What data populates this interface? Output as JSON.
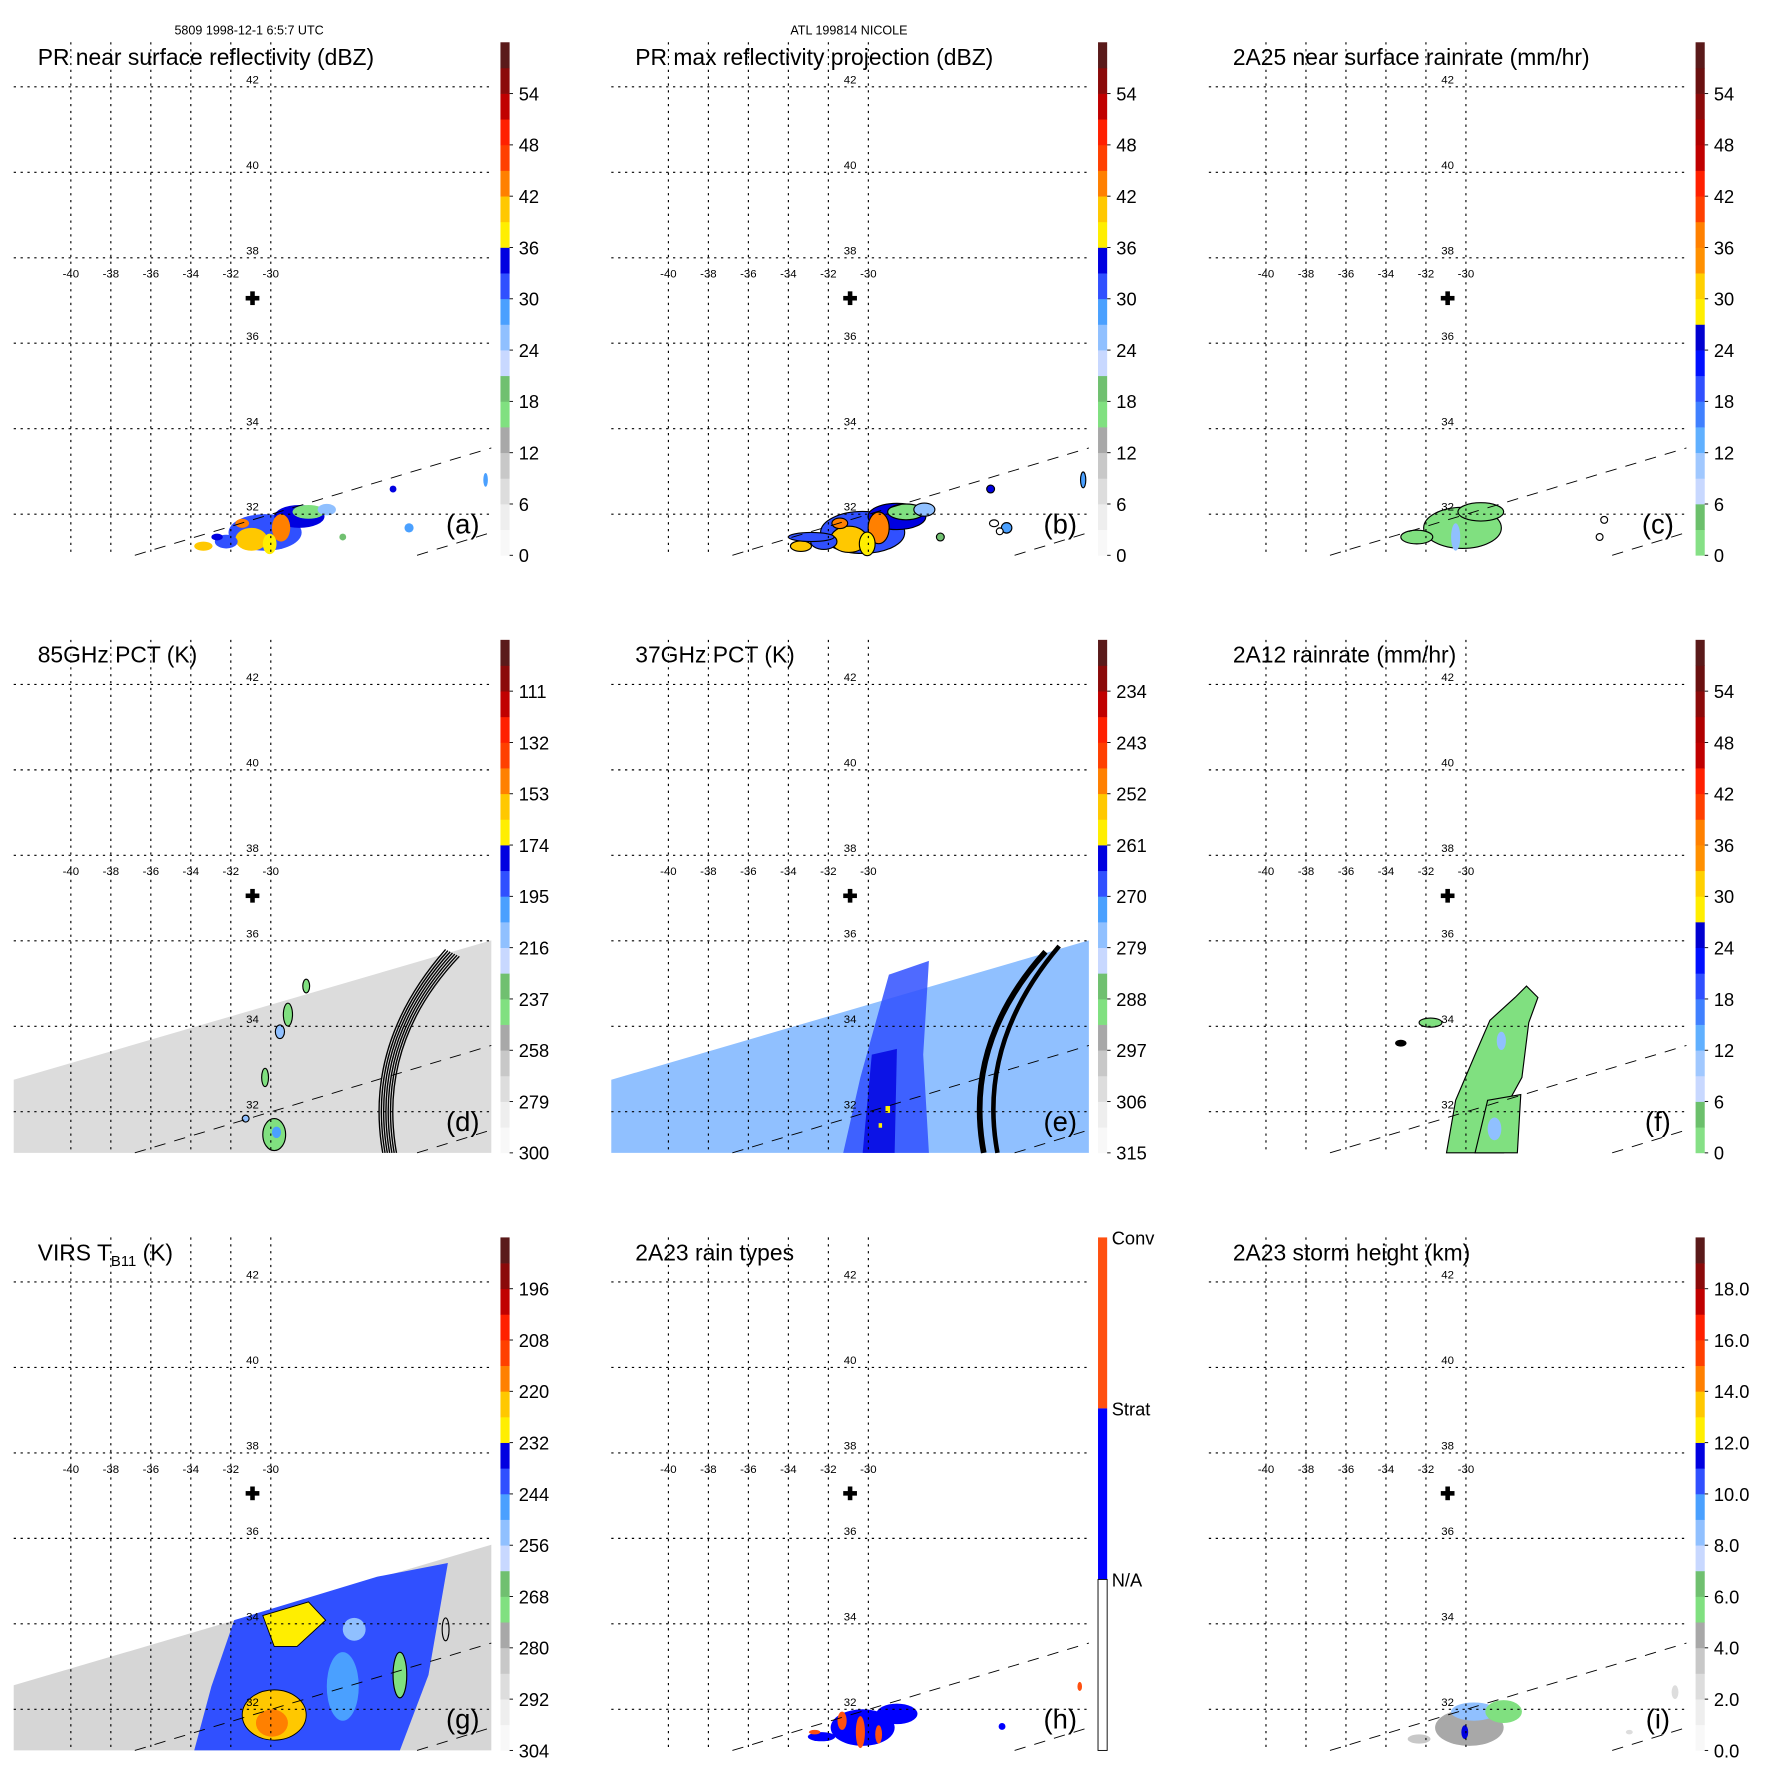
{
  "header": {
    "orbit_time": "5809 1998-12-1 6:5:7 UTC",
    "storm": "ATL 199814 NICOLE"
  },
  "colors": {
    "standard": [
      "#f8f8f8",
      "#eeeeee",
      "#dddddd",
      "#c8c8c8",
      "#a8a8a8",
      "#80e080",
      "#70c070",
      "#c8d8ff",
      "#90c0ff",
      "#4aa0ff",
      "#3050ff",
      "#0000e0",
      "#ffee00",
      "#ffc800",
      "#ff8000",
      "#ff4000",
      "#ff2000",
      "#c00000",
      "#8b0a0a",
      "#5a1a1a"
    ],
    "rain": [
      "#86e086",
      "#6cc06c",
      "#c8d8ff",
      "#a0c8ff",
      "#60b0ff",
      "#4080ff",
      "#3050ff",
      "#0010ff",
      "#0000d0",
      "#ffee00",
      "#ffd000",
      "#ff9000",
      "#ff8000",
      "#ff4000",
      "#ff2000",
      "#c00000",
      "#b00000",
      "#8b0a0a",
      "#6a1010",
      "#5a1a1a"
    ],
    "conv": "#ff5010",
    "strat": "#0000ff",
    "na": "#ffffff"
  },
  "chart_data": [
    {
      "type": "heatmap",
      "panel": "a",
      "title": "PR near surface reflectivity (dBZ)",
      "letter": "(a)",
      "palette": "standard",
      "colorbar_ticks": [
        "54",
        "48",
        "42",
        "36",
        "30",
        "24",
        "18",
        "12",
        "6",
        "0"
      ],
      "range": [
        0,
        60
      ],
      "lon_ticks": [
        "-40",
        "-38",
        "-36",
        "-34",
        "-32",
        "-30"
      ],
      "lat_ticks": [
        "42",
        "40",
        "38",
        "36",
        "34",
        "32"
      ],
      "field": "pr_rain"
    },
    {
      "type": "heatmap",
      "panel": "b",
      "title": "PR max reflectivity projection (dBZ)",
      "letter": "(b)",
      "palette": "standard",
      "colorbar_ticks": [
        "54",
        "48",
        "42",
        "36",
        "30",
        "24",
        "18",
        "12",
        "6",
        "0"
      ],
      "range": [
        0,
        60
      ],
      "lon_ticks": [
        "-40",
        "-38",
        "-36",
        "-34",
        "-32",
        "-30"
      ],
      "lat_ticks": [
        "42",
        "40",
        "38",
        "36",
        "34",
        "32"
      ],
      "field": "pr_max"
    },
    {
      "type": "heatmap",
      "panel": "c",
      "title": "2A25 near surface rainrate (mm/hr)",
      "letter": "(c)",
      "palette": "rain",
      "colorbar_ticks": [
        "54",
        "48",
        "42",
        "36",
        "30",
        "24",
        "18",
        "12",
        "6",
        "0"
      ],
      "range": [
        0,
        60
      ],
      "lon_ticks": [
        "-40",
        "-38",
        "-36",
        "-34",
        "-32",
        "-30"
      ],
      "lat_ticks": [
        "42",
        "40",
        "38",
        "36",
        "34",
        "32"
      ],
      "field": "pr_rr"
    },
    {
      "type": "heatmap",
      "panel": "d",
      "title": "85GHz PCT (K)",
      "letter": "(d)",
      "palette": "standard",
      "colorbar_ticks": [
        "111",
        "132",
        "153",
        "174",
        "195",
        "216",
        "237",
        "258",
        "279",
        "300"
      ],
      "range": [
        90,
        300
      ],
      "lon_ticks": [
        "-40",
        "-38",
        "-36",
        "-34",
        "-32",
        "-30"
      ],
      "lat_ticks": [
        "42",
        "40",
        "38",
        "36",
        "34",
        "32"
      ],
      "field": "pct85"
    },
    {
      "type": "heatmap",
      "panel": "e",
      "title": "37GHz PCT (K)",
      "letter": "(e)",
      "palette": "standard",
      "colorbar_ticks": [
        "234",
        "243",
        "252",
        "261",
        "270",
        "279",
        "288",
        "297",
        "306",
        "315"
      ],
      "range": [
        225,
        315
      ],
      "lon_ticks": [
        "-40",
        "-38",
        "-36",
        "-34",
        "-32",
        "-30"
      ],
      "lat_ticks": [
        "42",
        "40",
        "38",
        "36",
        "34",
        "32"
      ],
      "field": "pct37"
    },
    {
      "type": "heatmap",
      "panel": "f",
      "title": "2A12 rainrate (mm/hr)",
      "letter": "(f)",
      "palette": "rain",
      "colorbar_ticks": [
        "54",
        "48",
        "42",
        "36",
        "30",
        "24",
        "18",
        "12",
        "6",
        "0"
      ],
      "range": [
        0,
        60
      ],
      "lon_ticks": [
        "-40",
        "-38",
        "-36",
        "-34",
        "-32",
        "-30"
      ],
      "lat_ticks": [
        "42",
        "40",
        "38",
        "36",
        "34",
        "32"
      ],
      "field": "tmi_rr"
    },
    {
      "type": "heatmap",
      "panel": "g",
      "title": "VIRS T",
      "title_sub": "B11",
      "title_tail": " (K)",
      "letter": "(g)",
      "palette": "standard",
      "colorbar_ticks": [
        "196",
        "208",
        "220",
        "232",
        "244",
        "256",
        "268",
        "280",
        "292",
        "304"
      ],
      "range": [
        184,
        304
      ],
      "lon_ticks": [
        "-40",
        "-38",
        "-36",
        "-34",
        "-32",
        "-30"
      ],
      "lat_ticks": [
        "42",
        "40",
        "38",
        "36",
        "34",
        "32"
      ],
      "field": "virs"
    },
    {
      "type": "heatmap",
      "panel": "h",
      "title": "2A23 rain types",
      "letter": "(h)",
      "palette": "types",
      "colorbar_ticks": [
        "Conv",
        "Strat",
        "N/A"
      ],
      "lon_ticks": [
        "-40",
        "-38",
        "-36",
        "-34",
        "-32",
        "-30"
      ],
      "lat_ticks": [
        "42",
        "40",
        "38",
        "36",
        "34",
        "32"
      ],
      "field": "types"
    },
    {
      "type": "heatmap",
      "panel": "i",
      "title": "2A23 storm height (km)",
      "letter": "(i)",
      "palette": "standard",
      "colorbar_ticks": [
        "18.0",
        "16.0",
        "14.0",
        "12.0",
        "10.0",
        "8.0",
        "6.0",
        "4.0",
        "2.0",
        "0.0"
      ],
      "range": [
        0,
        20
      ],
      "lon_ticks": [
        "-40",
        "-38",
        "-36",
        "-34",
        "-32",
        "-30"
      ],
      "lat_ticks": [
        "42",
        "40",
        "38",
        "36",
        "34",
        "32"
      ],
      "field": "height"
    }
  ]
}
